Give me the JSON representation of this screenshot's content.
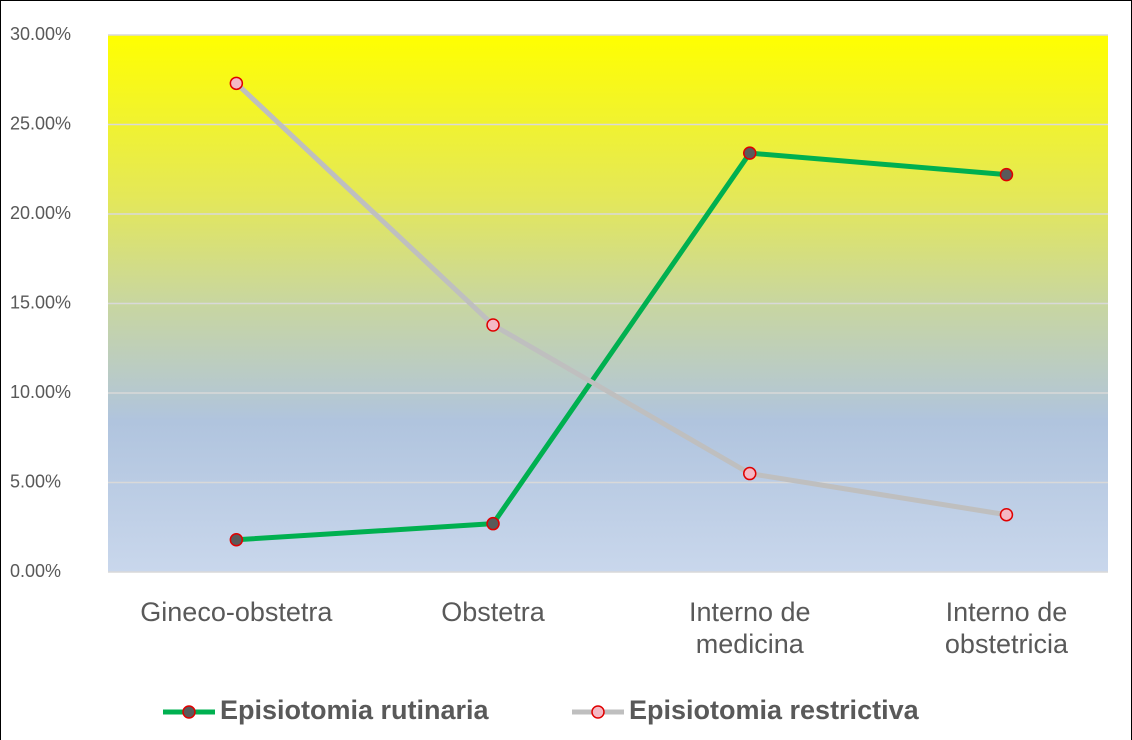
{
  "chart_data": {
    "type": "line",
    "categories": [
      "Gineco-obstetra",
      "Obstetra",
      "Interno de medicina",
      "Interno de obstetricia"
    ],
    "series": [
      {
        "name": "Episiotomia rutinaria",
        "color": "#00b050",
        "marker_fill": "#5a5a5a",
        "values": [
          1.8,
          2.7,
          23.4,
          22.2
        ]
      },
      {
        "name": "Episiotomia restrictiva",
        "color": "#bfbfbf",
        "marker_fill": "#f4b8c4",
        "values": [
          27.3,
          13.8,
          5.5,
          3.2
        ]
      }
    ],
    "ylim": [
      0,
      30
    ],
    "yticks": [
      {
        "value": 0,
        "label": "0.00%"
      },
      {
        "value": 5,
        "label": "5.00%"
      },
      {
        "value": 10,
        "label": "10.00%"
      },
      {
        "value": 15,
        "label": "15.00%"
      },
      {
        "value": 20,
        "label": "20.00%"
      },
      {
        "value": 25,
        "label": "25.00%"
      },
      {
        "value": 30,
        "label": "30.00%"
      }
    ],
    "grid": true,
    "legend": "bottom"
  }
}
